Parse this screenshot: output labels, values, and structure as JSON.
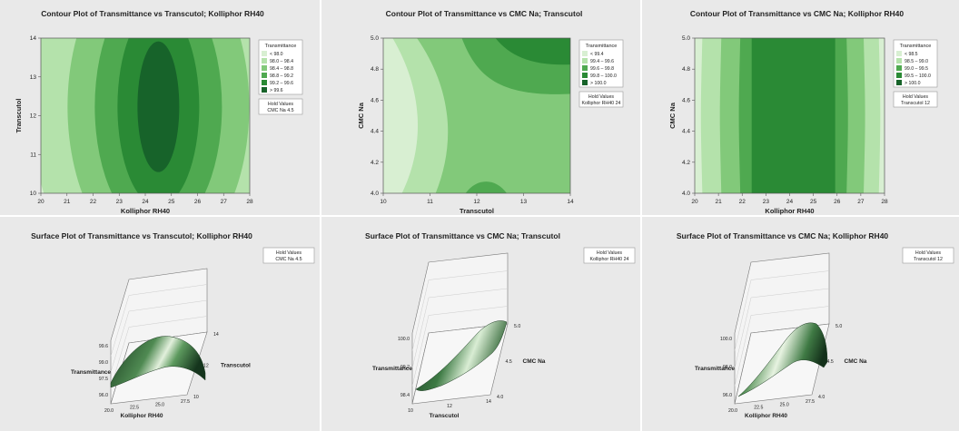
{
  "colors": {
    "panel_bg": "#e9e9e9",
    "plot_bg": "#ffffff",
    "greens": [
      "#d8efd2",
      "#b4e2ab",
      "#82c97a",
      "#4fa950",
      "#2a8a35",
      "#17632a"
    ],
    "surface_dark": "#15351d",
    "surface_light": "#e6f2df"
  },
  "chart_data": [
    {
      "type": "contour",
      "title": "Contour Plot of Transmittance vs Transcutol; Kolliphor RH40",
      "xlabel": "Kolliphor RH40",
      "ylabel": "Transcutol",
      "x_ticks": [
        "20",
        "21",
        "22",
        "23",
        "24",
        "25",
        "26",
        "27",
        "28"
      ],
      "y_ticks": [
        "10",
        "11",
        "12",
        "13",
        "14"
      ],
      "xlim": [
        20,
        28
      ],
      "ylim": [
        10,
        14
      ],
      "legend_title": "Transmittance",
      "legend": [
        "< 98.0",
        "98.0 – 98.4",
        "98.4 – 98.8",
        "98.8 – 99.2",
        "99.2 – 99.6",
        "> 99.6"
      ],
      "levels": [
        98.0,
        98.4,
        98.8,
        99.2,
        99.6
      ],
      "optimum": {
        "x": 24.5,
        "y": 12.7
      },
      "hold_values_label": "Hold Values",
      "hold_values": "CMC Na  4.5"
    },
    {
      "type": "contour",
      "title": "Contour Plot of Transmittance vs CMC Na; Transcutol",
      "xlabel": "Transcutol",
      "ylabel": "CMC Na",
      "x_ticks": [
        "10",
        "11",
        "12",
        "13",
        "14"
      ],
      "y_ticks": [
        "4.0",
        "4.2",
        "4.4",
        "4.6",
        "4.8",
        "5.0"
      ],
      "xlim": [
        10,
        14
      ],
      "ylim": [
        4.0,
        5.0
      ],
      "legend_title": "Transmittance",
      "legend": [
        "< 99.4",
        "99.4 – 99.6",
        "99.6 – 99.8",
        "99.8 – 100.0",
        "> 100.0"
      ],
      "levels": [
        99.4,
        99.6,
        99.8,
        100.0
      ],
      "hold_values_label": "Hold Values",
      "hold_values": "Kolliphor RH40  24"
    },
    {
      "type": "contour",
      "title": "Contour Plot of Transmittance vs CMC Na; Kolliphor RH40",
      "xlabel": "Kolliphor RH40",
      "ylabel": "CMC Na",
      "x_ticks": [
        "20",
        "21",
        "22",
        "23",
        "24",
        "25",
        "26",
        "27",
        "28"
      ],
      "y_ticks": [
        "4.0",
        "4.2",
        "4.4",
        "4.6",
        "4.8",
        "5.0"
      ],
      "xlim": [
        20,
        28
      ],
      "ylim": [
        4.0,
        5.0
      ],
      "legend_title": "Transmittance",
      "legend": [
        "< 98.5",
        "98.5 – 99.0",
        "99.0 – 99.5",
        "99.5 – 100.0",
        "> 100.0"
      ],
      "levels": [
        98.5,
        99.0,
        99.5,
        100.0
      ],
      "hold_values_label": "Hold Values",
      "hold_values": "Transcutol  12"
    },
    {
      "type": "surface",
      "title": "Surface Plot of Transmittance vs Transcutol; Kolliphor RH40",
      "xlabel": "Kolliphor RH40",
      "ylabel": "Transcutol",
      "zlabel": "Transmittance",
      "x_ticks": [
        "20.0",
        "22.5",
        "25.0",
        "27.5"
      ],
      "y_ticks": [
        "10",
        "12",
        "14"
      ],
      "z_ticks": [
        "96.0",
        "97.5",
        "99.0",
        "99.6"
      ],
      "hold_values_label": "Hold Values",
      "hold_values": "CMC Na  4.5"
    },
    {
      "type": "surface",
      "title": "Surface Plot of Transmittance vs CMC Na; Transcutol",
      "xlabel": "Transcutol",
      "ylabel": "CMC Na",
      "zlabel": "Transmittance",
      "x_ticks": [
        "10",
        "12",
        "14"
      ],
      "y_ticks": [
        "4.0",
        "4.5",
        "5.0"
      ],
      "z_ticks": [
        "98.4",
        "99.2",
        "100.0"
      ],
      "hold_values_label": "Hold Values",
      "hold_values": "Kolliphor RH40  24"
    },
    {
      "type": "surface",
      "title": "Surface Plot of Transmittance vs CMC Na; Kolliphor RH40",
      "xlabel": "Kolliphor RH40",
      "ylabel": "CMC Na",
      "zlabel": "Transmittance",
      "x_ticks": [
        "20.0",
        "22.5",
        "25.0",
        "27.5"
      ],
      "y_ticks": [
        "4.0",
        "4.5",
        "5.0"
      ],
      "z_ticks": [
        "96.0",
        "98.0",
        "100.0"
      ],
      "hold_values_label": "Hold Values",
      "hold_values": "Transcutol  12"
    }
  ]
}
